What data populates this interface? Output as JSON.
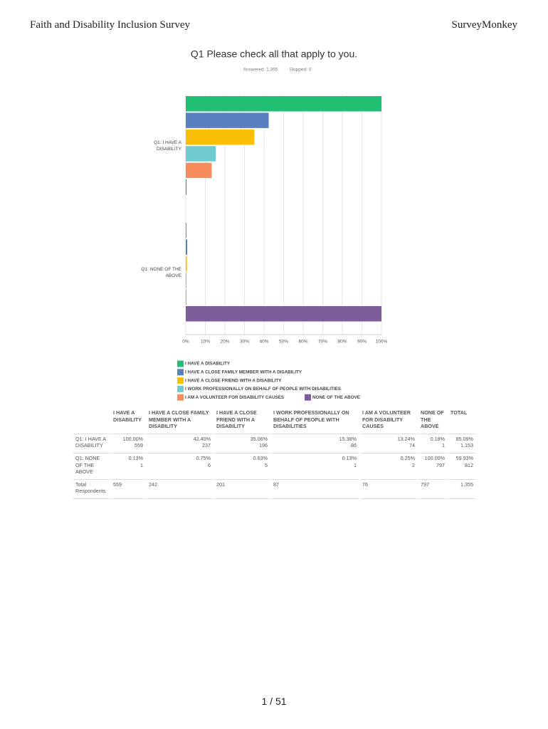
{
  "header": {
    "title": "Faith and Disability Inclusion Survey",
    "brand": "SurveyMonkey"
  },
  "chart_data": {
    "type": "hbar",
    "title": "Q1 Please check all that apply to you.",
    "answered": "Answered: 1,355",
    "skipped": "Skipped: 0",
    "categories": [
      "Q1: I HAVE A DISABILITY",
      "Q1: NONE OF THE ABOVE"
    ],
    "series": [
      {
        "name": "I HAVE A DISABILITY",
        "color": "#21bf73",
        "values": [
          100,
          0.13
        ]
      },
      {
        "name": "I HAVE A CLOSE FAMILY MEMBER WITH A DISABILITY",
        "color": "#5b80c0",
        "values": [
          42.4,
          0.75
        ]
      },
      {
        "name": "I HAVE A CLOSE FRIEND WITH A DISABILITY",
        "color": "#fbbf05",
        "values": [
          35.06,
          0.63
        ]
      },
      {
        "name": "I WORK PROFESSIONALLY ON BEHALF OF PEOPLE WITH DISABILITIES",
        "color": "#6fcbd0",
        "values": [
          15.38,
          0.13
        ]
      },
      {
        "name": "I AM A VOLUNTEER FOR DISABILITY CAUSES",
        "color": "#f68d5a",
        "values": [
          13.24,
          0.25
        ]
      },
      {
        "name": "NONE OF THE ABOVE",
        "color": "#7d5c9a",
        "values": [
          0.18,
          100
        ]
      }
    ],
    "xlim": [
      0,
      100
    ],
    "xticks": [
      {
        "value": 0,
        "label": "0%"
      },
      {
        "value": 10,
        "label": "10%"
      },
      {
        "value": 20,
        "label": "20%"
      },
      {
        "value": 30,
        "label": "30%"
      },
      {
        "value": 40,
        "label": "40%"
      },
      {
        "value": 50,
        "label": "50%"
      },
      {
        "value": 60,
        "label": "60%"
      },
      {
        "value": 70,
        "label": "70%"
      },
      {
        "value": 80,
        "label": "80%"
      },
      {
        "value": 90,
        "label": "90%"
      },
      {
        "value": 100,
        "label": "100%"
      }
    ],
    "grid": true
  },
  "table": {
    "columns": [
      "I HAVE A DISABILITY",
      "I HAVE A CLOSE FAMILY MEMBER WITH A DISABILITY",
      "I HAVE A CLOSE FRIEND WITH A DISABILITY",
      "I WORK PROFESSIONALLY ON BEHALF OF PEOPLE WITH DISABILITIES",
      "I AM A VOLUNTEER FOR DISABILITY CAUSES",
      "NONE OF THE ABOVE",
      "TOTAL"
    ],
    "rows": [
      {
        "label": "Q1: I HAVE A DISABILITY",
        "cells": [
          [
            "100.00%",
            "559"
          ],
          [
            "42.40%",
            "237"
          ],
          [
            "35.06%",
            "196"
          ],
          [
            "15.38%",
            "86"
          ],
          [
            "13.24%",
            "74"
          ],
          [
            "0.18%",
            "1"
          ],
          [
            "85.09%",
            "1,153"
          ]
        ]
      },
      {
        "label": "Q1: NONE OF THE ABOVE",
        "cells": [
          [
            "0.13%",
            "1"
          ],
          [
            "0.75%",
            "6"
          ],
          [
            "0.63%",
            "5"
          ],
          [
            "0.13%",
            "1"
          ],
          [
            "0.25%",
            "2"
          ],
          [
            "100.00%",
            "797"
          ],
          [
            "59.93%",
            "812"
          ]
        ]
      }
    ],
    "total": {
      "label": "Total Respondents",
      "cells": [
        "559",
        "242",
        "201",
        "87",
        "76",
        "797",
        "1,355"
      ]
    }
  },
  "footer": {
    "page": "1 / 51"
  }
}
